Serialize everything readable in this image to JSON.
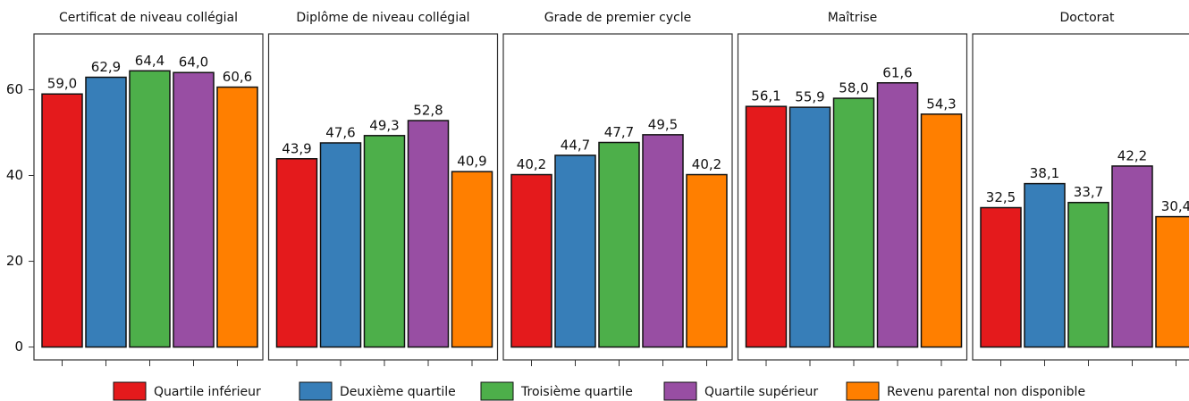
{
  "chart_data": {
    "type": "bar",
    "categories": [
      "Certificat de niveau collégial",
      "Diplôme de niveau collégial",
      "Grade de premier cycle",
      "Maîtrise",
      "Doctorat"
    ],
    "series": [
      {
        "name": "Quartile inférieur",
        "color": "#e41a1c",
        "values": [
          59.0,
          43.9,
          40.2,
          56.1,
          32.5
        ],
        "value_labels": [
          "59,0",
          "43,9",
          "40,2",
          "56,1",
          "32,5"
        ]
      },
      {
        "name": "Deuxième quartile",
        "color": "#377eb8",
        "values": [
          62.9,
          47.6,
          44.7,
          55.9,
          38.1
        ],
        "value_labels": [
          "62,9",
          "47,6",
          "44,7",
          "55,9",
          "38,1"
        ]
      },
      {
        "name": "Troisième quartile",
        "color": "#4daf4a",
        "values": [
          64.4,
          49.3,
          47.7,
          58.0,
          33.7
        ],
        "value_labels": [
          "64,4",
          "49,3",
          "47,7",
          "58,0",
          "33,7"
        ]
      },
      {
        "name": "Quartile supérieur",
        "color": "#984ea3",
        "values": [
          64.0,
          52.8,
          49.5,
          61.6,
          42.2
        ],
        "value_labels": [
          "64,0",
          "52,8",
          "49,5",
          "61,6",
          "42,2"
        ]
      },
      {
        "name": "Revenu parental non disponible",
        "color": "#ff7f00",
        "values": [
          60.6,
          40.9,
          40.2,
          54.3,
          30.4
        ],
        "value_labels": [
          "60,6",
          "40,9",
          "40,2",
          "54,3",
          "30,4"
        ]
      }
    ],
    "ylim": [
      -3,
      73
    ],
    "yticks": [
      0,
      20,
      40,
      60
    ],
    "grid": false,
    "legend": "bottom"
  }
}
